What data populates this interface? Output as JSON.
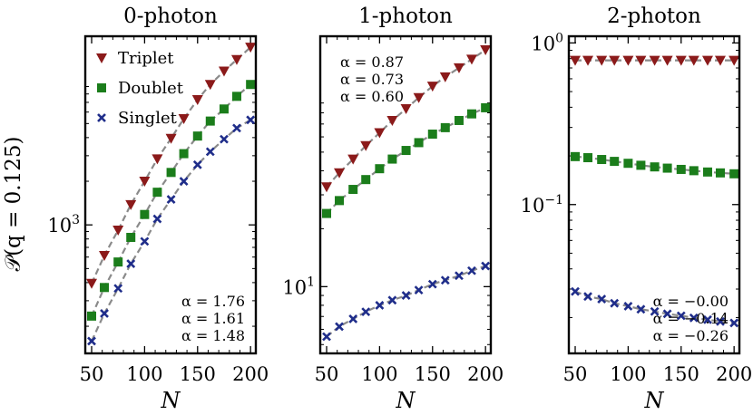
{
  "figure": {
    "ylabel": "𝒫(q = 0.125)",
    "xlabel": "N"
  },
  "colors": {
    "Triplet": "#8b1a1a",
    "Doublet": "#1b7d1b",
    "Singlet": "#1f2d8a",
    "fit": "#8a8a8a"
  },
  "chart_data": [
    {
      "type": "scatter",
      "title": "0-photon",
      "xlabel": "N",
      "yscale": "log",
      "xlim": [
        44,
        205
      ],
      "ylim": [
        130,
        20000
      ],
      "xticks": [
        50,
        100,
        150,
        200
      ],
      "yticks": [
        {
          "value": 1000,
          "label": "10",
          "exp": "3"
        }
      ],
      "x": [
        50,
        62,
        75,
        87,
        100,
        112,
        125,
        137,
        150,
        162,
        175,
        187,
        200
      ],
      "series": [
        {
          "name": "Triplet",
          "marker": "triangle",
          "values": [
            395,
            615,
            920,
            1380,
            2000,
            2850,
            3950,
            5400,
            7300,
            9300,
            11500,
            13800,
            16800
          ]
        },
        {
          "name": "Doublet",
          "marker": "square",
          "values": [
            235,
            370,
            555,
            820,
            1180,
            1680,
            2300,
            3100,
            4100,
            5200,
            6300,
            7700,
            9300
          ]
        },
        {
          "name": "Singlet",
          "marker": "x",
          "values": [
            158,
            245,
            365,
            540,
            770,
            1100,
            1500,
            2000,
            2600,
            3200,
            3900,
            4650,
            5300
          ]
        }
      ],
      "legend": {
        "position": "top-left",
        "entries": [
          "Triplet",
          "Doublet",
          "Singlet"
        ]
      },
      "annotations": [
        "α = 1.76",
        "α = 1.61",
        "α = 1.48"
      ],
      "annotation_position": "bottom-right"
    },
    {
      "type": "scatter",
      "title": "1-photon",
      "xlabel": "N",
      "yscale": "log",
      "xlim": [
        44,
        205
      ],
      "ylim": [
        4.5,
        200
      ],
      "xticks": [
        50,
        100,
        150,
        200
      ],
      "yticks": [
        {
          "value": 10,
          "label": "10",
          "exp": "1"
        }
      ],
      "x": [
        50,
        62,
        75,
        87,
        100,
        112,
        125,
        137,
        150,
        162,
        175,
        187,
        200
      ],
      "series": [
        {
          "name": "Triplet",
          "marker": "triangle",
          "values": [
            33,
            39,
            46,
            54,
            63,
            73,
            84,
            96,
            110,
            123,
            137,
            152,
            170
          ]
        },
        {
          "name": "Doublet",
          "marker": "square",
          "values": [
            24,
            28,
            32,
            36,
            41,
            46,
            51,
            56,
            62,
            67,
            73,
            79,
            85
          ]
        },
        {
          "name": "Singlet",
          "marker": "x",
          "values": [
            5.5,
            6.2,
            6.8,
            7.4,
            8.0,
            8.5,
            9.0,
            9.6,
            10.3,
            10.8,
            11.4,
            12.1,
            12.8
          ]
        }
      ],
      "annotations": [
        "α = 0.87",
        "α = 0.73",
        "α = 0.60"
      ],
      "annotation_position": "top-left"
    },
    {
      "type": "scatter",
      "title": "2-photon",
      "xlabel": "N",
      "yscale": "log",
      "xlim": [
        44,
        205
      ],
      "ylim": [
        0.012,
        1.1
      ],
      "xticks": [
        50,
        100,
        150,
        200
      ],
      "yticks": [
        {
          "value": 1,
          "label": "10",
          "exp": "0"
        },
        {
          "value": 0.1,
          "label": "10",
          "exp": "−1"
        }
      ],
      "x": [
        50,
        62,
        75,
        87,
        100,
        112,
        125,
        137,
        150,
        162,
        175,
        187,
        200
      ],
      "series": [
        {
          "name": "Triplet",
          "marker": "triangle",
          "values": [
            0.78,
            0.78,
            0.78,
            0.78,
            0.78,
            0.78,
            0.78,
            0.78,
            0.78,
            0.78,
            0.78,
            0.78,
            0.78
          ]
        },
        {
          "name": "Doublet",
          "marker": "square",
          "values": [
            0.198,
            0.195,
            0.19,
            0.185,
            0.18,
            0.175,
            0.171,
            0.168,
            0.165,
            0.162,
            0.159,
            0.157,
            0.155
          ]
        },
        {
          "name": "Singlet",
          "marker": "x",
          "values": [
            0.029,
            0.027,
            0.026,
            0.0245,
            0.0235,
            0.0225,
            0.0218,
            0.0211,
            0.0205,
            0.0199,
            0.0194,
            0.0189,
            0.0185
          ]
        }
      ],
      "annotations": [
        "α = −0.00",
        "α = −0.14",
        "α = −0.26"
      ],
      "annotation_position": "bottom-right"
    }
  ]
}
